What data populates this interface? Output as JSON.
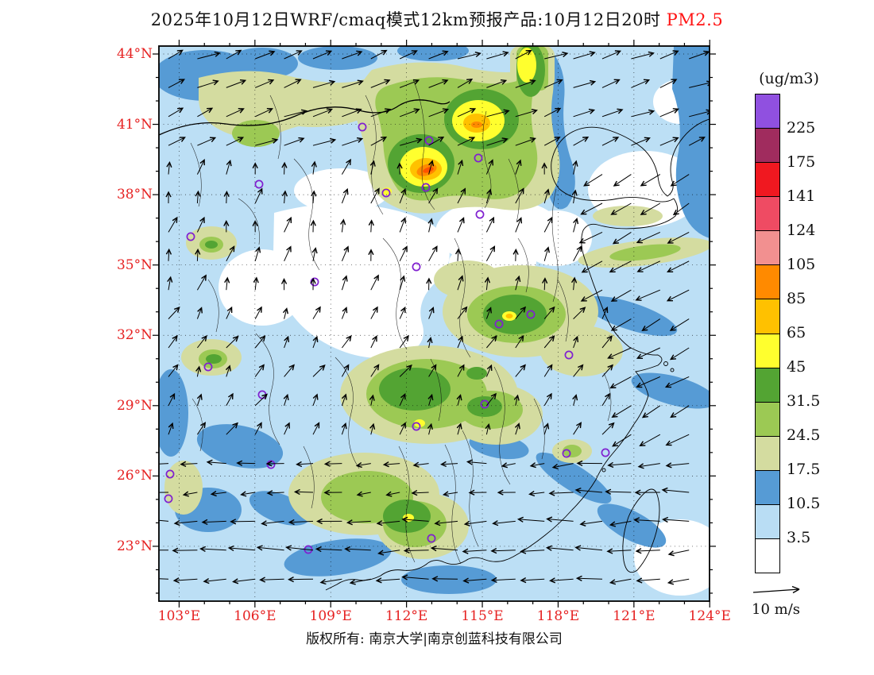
{
  "title": {
    "main": "2025年10月12日WRF/cmaq模式12km预报产品:10月12日20时",
    "pollutant": "PM2.5"
  },
  "axes": {
    "lat": [
      "44°N",
      "41°N",
      "38°N",
      "35°N",
      "32°N",
      "29°N",
      "26°N",
      "23°N"
    ],
    "lon": [
      "103°E",
      "106°E",
      "109°E",
      "112°E",
      "115°E",
      "118°E",
      "121°E",
      "124°E"
    ]
  },
  "colorbar": {
    "unit": "(ug/m3)",
    "boundary_labels": [
      "225",
      "175",
      "141",
      "124",
      "105",
      "85",
      "65",
      "45",
      "31.5",
      "24.5",
      "17.5",
      "10.5",
      "3.5"
    ],
    "segment_colors_top_to_bottom": [
      "#9050E0",
      "#A02C5E",
      "#F01820",
      "#EF4B63",
      "#F29090",
      "#FF8A00",
      "#FFC100",
      "#FFFF2E",
      "#53A433",
      "#9CC954",
      "#D4DCA0",
      "#569BD5",
      "#B9DDF4",
      "#FFFFFF"
    ]
  },
  "wind_legend": {
    "label": "10 m/s"
  },
  "footer": {
    "text": "版权所有: 南京大学|南京创蓝科技有限公司"
  },
  "colors": {
    "axis_label": "#E62222",
    "title_highlight": "#FF1414",
    "station_marker": "#8020D0",
    "map_background": "#FFFFFF"
  },
  "chart_data": {
    "type": "heatmap",
    "title": "2025年10月12日WRF/cmaq模式12km预报产品:10月12日20时 PM2.5",
    "unit": "ug/m3",
    "x_ticks_deg_east": [
      103,
      106,
      109,
      112,
      115,
      118,
      121,
      124
    ],
    "y_ticks_deg_north": [
      23,
      26,
      29,
      32,
      35,
      38,
      41,
      44
    ],
    "color_levels": [
      3.5,
      10.5,
      17.5,
      24.5,
      31.5,
      45,
      65,
      85,
      105,
      124,
      141,
      175,
      225
    ],
    "overlays": [
      "wind vectors (reference 10 m/s)",
      "station markers"
    ],
    "legend_position": "right",
    "grid": "dotted lat/lon lines every 3 degrees"
  }
}
